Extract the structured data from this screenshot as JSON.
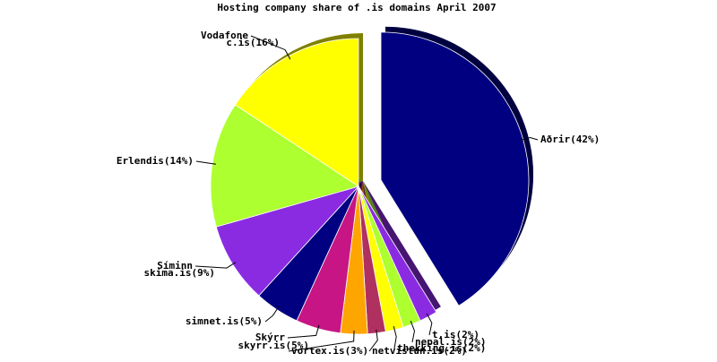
{
  "chart_data": {
    "type": "pie",
    "title": "Hosting company share of .is domains April 2007",
    "categories": [
      [
        "Aðrir(42%)"
      ],
      [
        "t.is(2%)"
      ],
      [
        "nepal.is(2%)"
      ],
      [
        "thekking.is(2%)"
      ],
      [
        "netvistun.is(2%)"
      ],
      [
        "vortex.is(3%)"
      ],
      [
        "Skýrr",
        "skyrr.is(5%)"
      ],
      [
        "simnet.is(5%)"
      ],
      [
        "Síminn",
        "skima.is(9%)"
      ],
      [
        "Erlendis(14%)"
      ],
      [
        "Vodafone",
        "c.is(16%)"
      ]
    ],
    "values": [
      42,
      2,
      2,
      2,
      2,
      3,
      5,
      5,
      9,
      14,
      16
    ],
    "colors": [
      "#000080",
      "#8a2be2",
      "#adff2f",
      "#ffff00",
      "#b03060",
      "#ffa500",
      "#c71585",
      "#000080",
      "#8a2be2",
      "#adff2f",
      "#ffff00"
    ],
    "exploded": [
      0
    ]
  }
}
